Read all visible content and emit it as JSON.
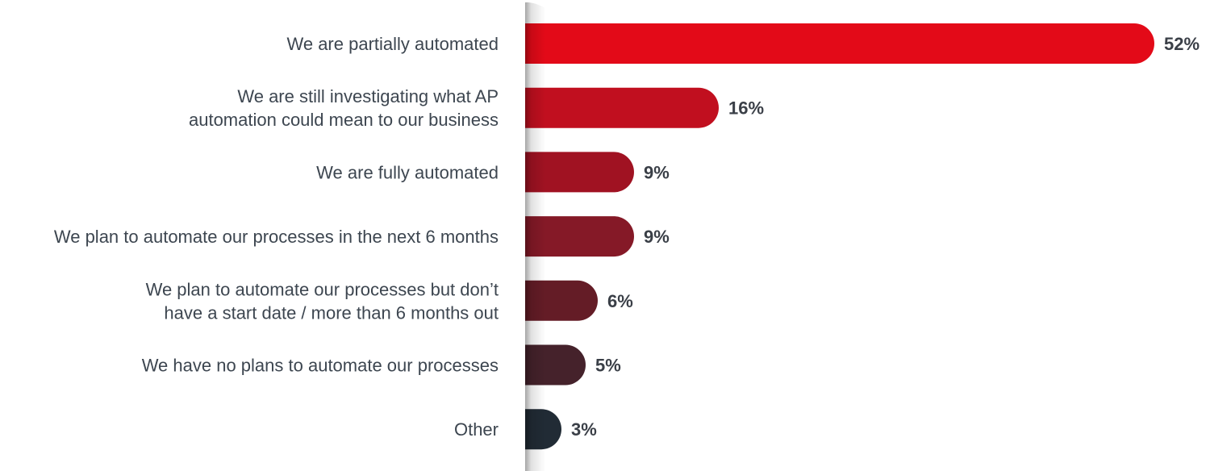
{
  "chart_data": {
    "type": "bar",
    "orientation": "horizontal",
    "title": "",
    "xlabel": "",
    "ylabel": "",
    "xlim": [
      0,
      52
    ],
    "grid": false,
    "categories": [
      [
        "We are partially automated"
      ],
      [
        "We are still investigating what AP",
        "automation could mean to our business"
      ],
      [
        "We are fully automated"
      ],
      [
        "We plan to automate our processes in the next 6 months"
      ],
      [
        "We plan to automate our processes but don’t",
        "have a start date / more than 6 months out"
      ],
      [
        "We have no plans to automate our processes"
      ],
      [
        "Other"
      ]
    ],
    "values": [
      52,
      16,
      9,
      9,
      6,
      5,
      3
    ],
    "value_labels": [
      "52%",
      "16%",
      "9%",
      "9%",
      "6%",
      "5%",
      "3%"
    ],
    "colors": [
      "#E30A18",
      "#C10F1F",
      "#A01222",
      "#851927",
      "#641C26",
      "#45222B",
      "#212B35"
    ]
  }
}
